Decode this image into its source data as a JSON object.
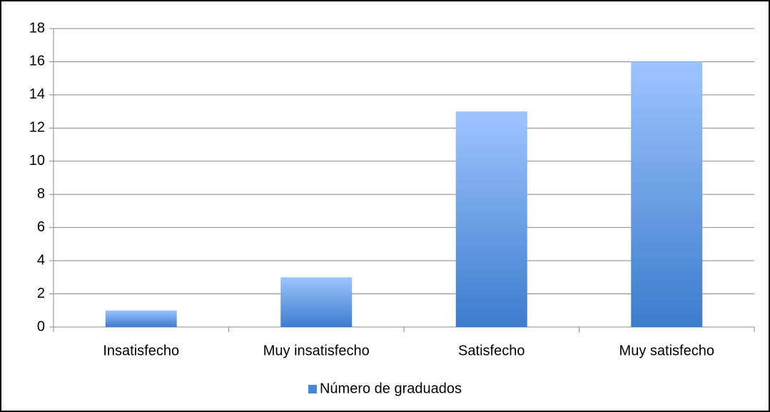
{
  "chart_data": {
    "type": "bar",
    "categories": [
      "Insatisfecho",
      "Muy insatisfecho",
      "Satisfecho",
      "Muy satisfecho"
    ],
    "series": [
      {
        "name": "Número de graduados",
        "color": "#4a86d8",
        "values": [
          1,
          3,
          13,
          16
        ]
      }
    ],
    "ylim": [
      0,
      18
    ],
    "yticks": [
      0,
      2,
      4,
      6,
      8,
      10,
      12,
      14,
      16,
      18
    ],
    "grid": true,
    "legend": "bottom"
  }
}
